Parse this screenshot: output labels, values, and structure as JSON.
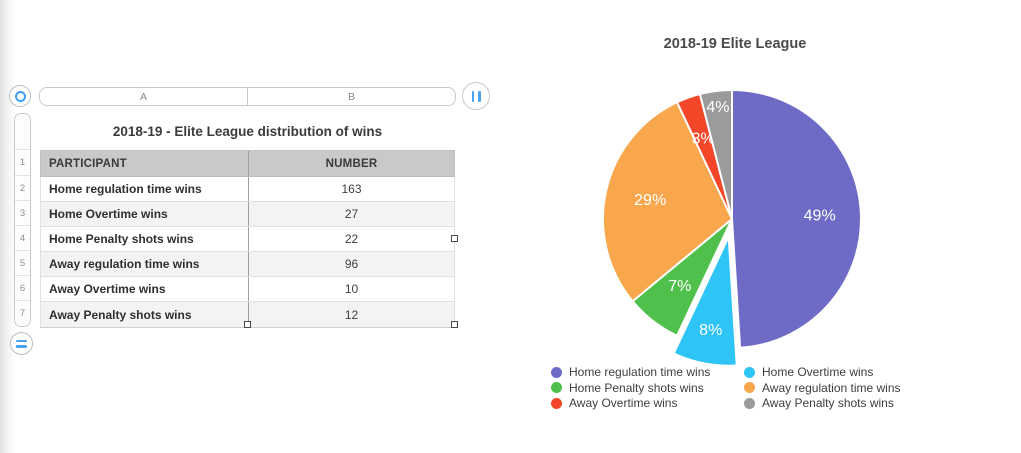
{
  "spreadsheet": {
    "column_headers": [
      "A",
      "B"
    ],
    "row_numbers": [
      "1",
      "2",
      "3",
      "4",
      "5",
      "6",
      "7"
    ],
    "table": {
      "title": "2018-19 - Elite League distribution of wins",
      "headers": [
        "PARTICIPANT",
        "NUMBER"
      ],
      "rows": [
        {
          "participant": "Home regulation time wins",
          "number": "163"
        },
        {
          "participant": "Home Overtime wins",
          "number": "27"
        },
        {
          "participant": "Home Penalty shots wins",
          "number": "22"
        },
        {
          "participant": "Away regulation time wins",
          "number": "96"
        },
        {
          "participant": "Away Overtime wins",
          "number": "10"
        },
        {
          "participant": "Away Penalty shots wins",
          "number": "12"
        }
      ]
    },
    "icons": {
      "select_all": "circle-outline-icon",
      "column_controls": "double-vertical-bars-icon",
      "table_menu": "double-horizontal-bars-icon"
    }
  },
  "chart_data": {
    "type": "pie",
    "title": "2018-19 Elite League",
    "start_angle_deg": 0,
    "direction": "clockwise",
    "legend_position": "bottom-two-columns",
    "categories": [
      "Home regulation time wins",
      "Home Overtime wins",
      "Home Penalty shots wins",
      "Away regulation time wins",
      "Away Overtime wins",
      "Away Penalty shots wins"
    ],
    "values": [
      163,
      27,
      22,
      96,
      10,
      12
    ],
    "slices": [
      {
        "label": "Home regulation time wins",
        "value": 163,
        "percent": 49,
        "percent_label": "49%",
        "color": "#6e6bc7",
        "label_r": 0.68,
        "exploded": false
      },
      {
        "label": "Home Overtime wins",
        "value": 27,
        "percent": 8,
        "percent_label": "8%",
        "color": "#2ec4f5",
        "label_r": 0.74,
        "exploded": true
      },
      {
        "label": "Home Penalty shots wins",
        "value": 22,
        "percent": 7,
        "percent_label": "7%",
        "color": "#50c04c",
        "label_r": 0.66,
        "exploded": false
      },
      {
        "label": "Away regulation time wins",
        "value": 96,
        "percent": 29,
        "percent_label": "29%",
        "color": "#f8a74d",
        "label_r": 0.65,
        "exploded": false
      },
      {
        "label": "Away Overtime wins",
        "value": 10,
        "percent": 3,
        "percent_label": "3%",
        "color": "#f44628",
        "label_r": 0.66,
        "exploded": false
      },
      {
        "label": "Away Penalty shots wins",
        "value": 12,
        "percent": 4,
        "percent_label": "4%",
        "color": "#9b9b9b",
        "label_r": 0.87,
        "exploded": false
      }
    ],
    "legend_columns": [
      [
        {
          "label": "Home regulation time wins",
          "color": "#6e6bc7"
        },
        {
          "label": "Home Penalty shots wins",
          "color": "#50c04c"
        },
        {
          "label": "Away Overtime wins",
          "color": "#f44628"
        }
      ],
      [
        {
          "label": "Home Overtime wins",
          "color": "#2ec4f5"
        },
        {
          "label": "Away regulation time wins",
          "color": "#f8a74d"
        },
        {
          "label": "Away Penalty shots wins",
          "color": "#9b9b9b"
        }
      ]
    ]
  },
  "colors": {
    "accent_blue": "#45a3f2",
    "header_row_fill": "#cac9c7",
    "alt_row_fill": "#f3f3f1",
    "column_divider": "#9f9f9f",
    "row_grid": "#dfdfdf"
  }
}
